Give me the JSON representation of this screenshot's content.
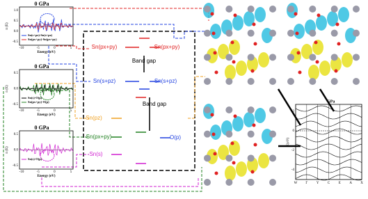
{
  "panels": [
    {
      "title": "0 GPa",
      "ylabel": "n (E)",
      "xlabel": "Energy (eV)",
      "yticks": [
        "1.0",
        "0.5",
        "0.0",
        "-0.5"
      ],
      "xticks": [
        "-10",
        "-5",
        "0",
        "5"
      ],
      "legend": [
        "Sn(s+pz)-Sn(s+pz)",
        "Sn(px+py)-Sn(px+py)"
      ]
    },
    {
      "title": "0 GPa",
      "ylabel": "n (E)",
      "xlabel": "Energy (eV)",
      "yticks": [
        "0.5",
        "0.0",
        "-0.5"
      ],
      "xticks": [
        "-10",
        "-5",
        "0",
        "5"
      ],
      "legend": [
        "Sn(s)-O(p)",
        "Sn(px+py)-O(p)"
      ]
    },
    {
      "title": "0 GPa",
      "ylabel": "n (E)",
      "xlabel": "Energy (eV)",
      "yticks": [
        "0.5",
        "0.0",
        "-0.5"
      ],
      "xticks": [
        "-10",
        "-5",
        "0",
        "5"
      ],
      "legend": [
        "Sn(s)-O(p)"
      ]
    }
  ],
  "diagram": {
    "top_left": "Sn(px+py)",
    "top_right": "Sn(px+py)",
    "gap_top": "Band gap",
    "mid_left": "Sn(s+pz)",
    "mid_right": "Sn(s+pz)",
    "gap_bottom": "Band gap",
    "pz": "Sn(pz)",
    "pxpy": "Sn(px+py)",
    "s": "Sn(s)",
    "op": "O(p)"
  },
  "bands": {
    "title": "GPa",
    "ylabel": "E(eV)",
    "yticks": [
      "2",
      "0",
      "-2",
      "-4"
    ],
    "kpoints": [
      "W",
      "Γ",
      "Y",
      "C",
      "E",
      "A",
      "X"
    ]
  }
}
